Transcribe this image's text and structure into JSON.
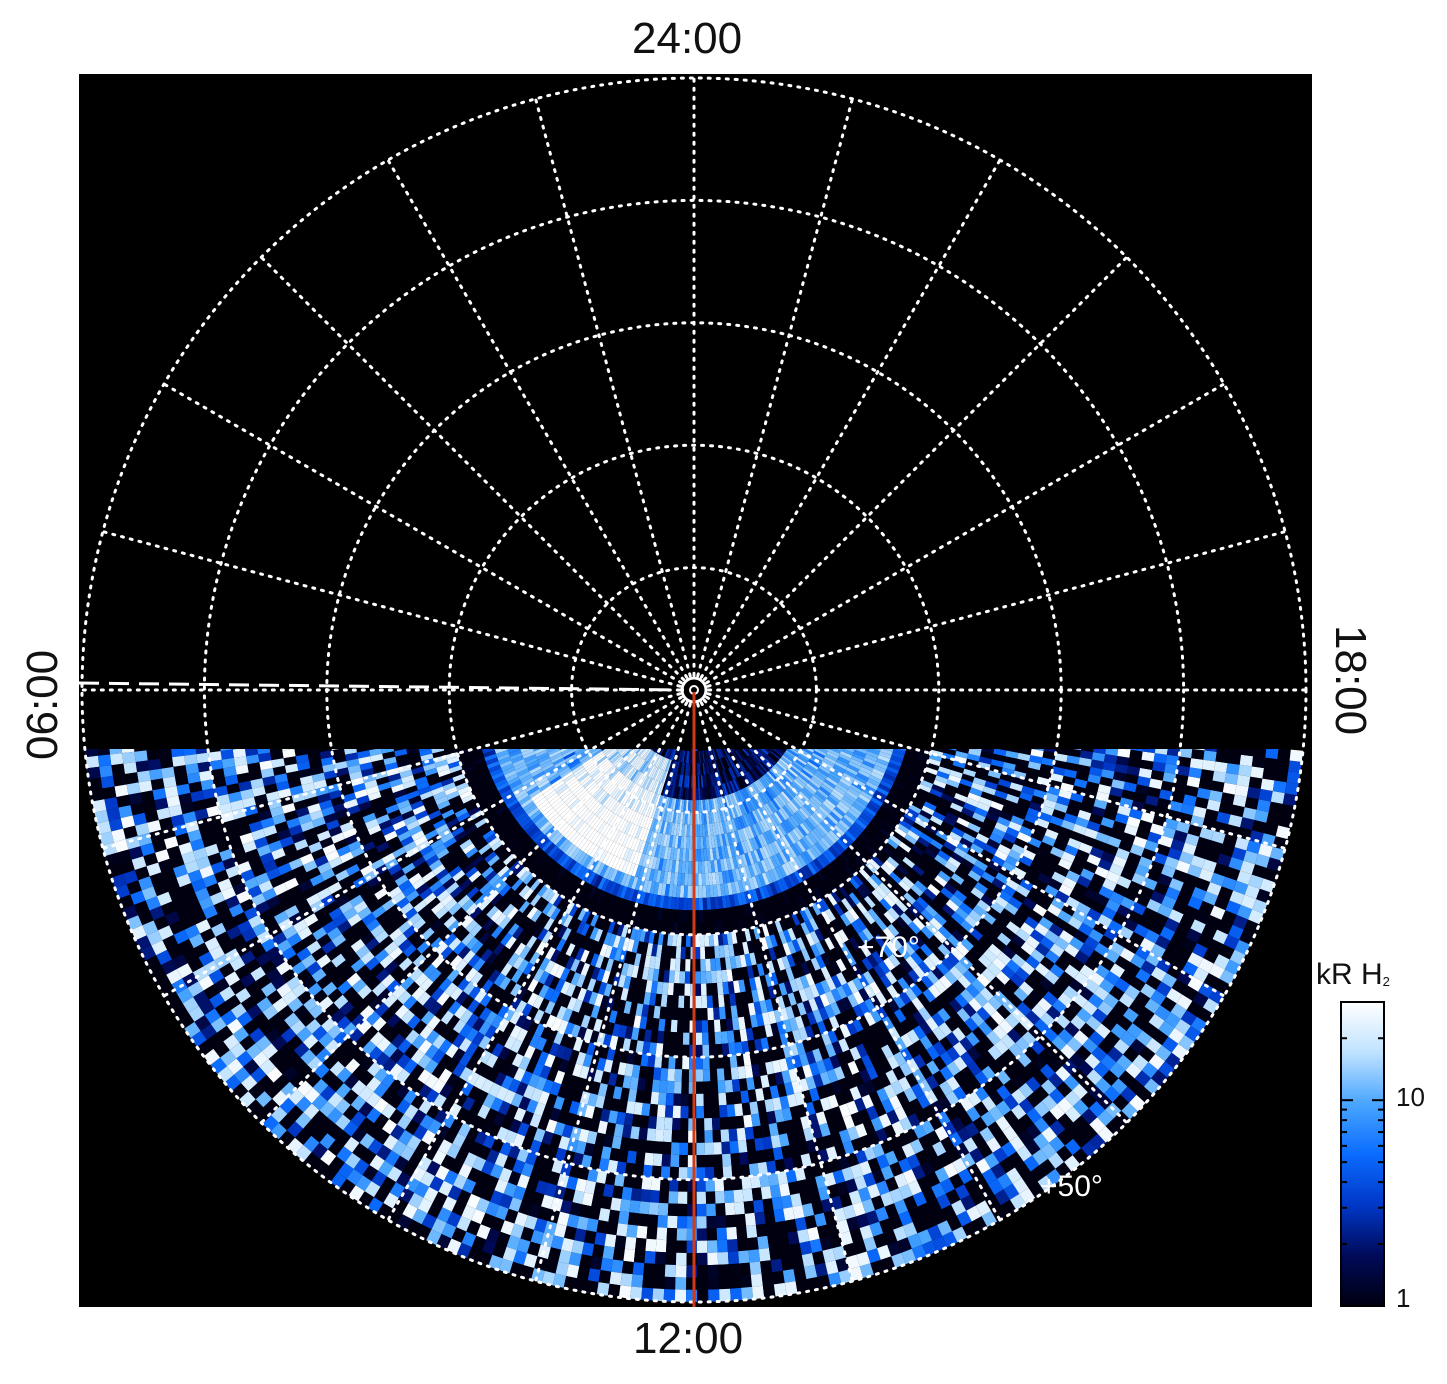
{
  "chart_data": {
    "type": "heatmap",
    "projection": "polar",
    "hemisphere_view": "north pole at center",
    "local_time_labels": {
      "top": "24:00",
      "right": "18:00",
      "bottom": "12:00",
      "left": "06:00"
    },
    "latitude_labels": [
      "+70°",
      "+50°"
    ],
    "latitude_circles_deg": [
      80,
      70,
      60,
      50,
      40
    ],
    "meridian_spacing_hours": 1,
    "observed_region": "dayside (below ~06:00–18:00 line)",
    "colorbar": {
      "title_main": "kR H",
      "title_sub": "2",
      "scale": "log",
      "range": [
        1,
        30
      ],
      "ticks": [
        "10",
        "1"
      ],
      "colors": [
        "#000010",
        "#000a5a",
        "#0038c8",
        "#0a6cff",
        "#4aa6ff",
        "#bfe2ff",
        "#ffffff"
      ]
    },
    "overlays": {
      "noon_meridian_line_color": "#d23a16",
      "dashed_line": "06:00 meridian from pole to edge",
      "grid_color": "#ffffff"
    },
    "features": [
      {
        "name": "bright arc",
        "local_time_hours": [
          8.2,
          10.8
        ],
        "colatitude_deg": [
          6,
          15
        ],
        "intensity_kR": 25
      },
      {
        "name": "main auroral oval",
        "local_time_hours": [
          6,
          18
        ],
        "colatitude_deg": [
          10,
          16
        ],
        "intensity_kR": 12
      },
      {
        "name": "low latitude noise",
        "colatitude_deg": [
          20,
          52
        ],
        "intensity_kR": 3
      }
    ]
  }
}
